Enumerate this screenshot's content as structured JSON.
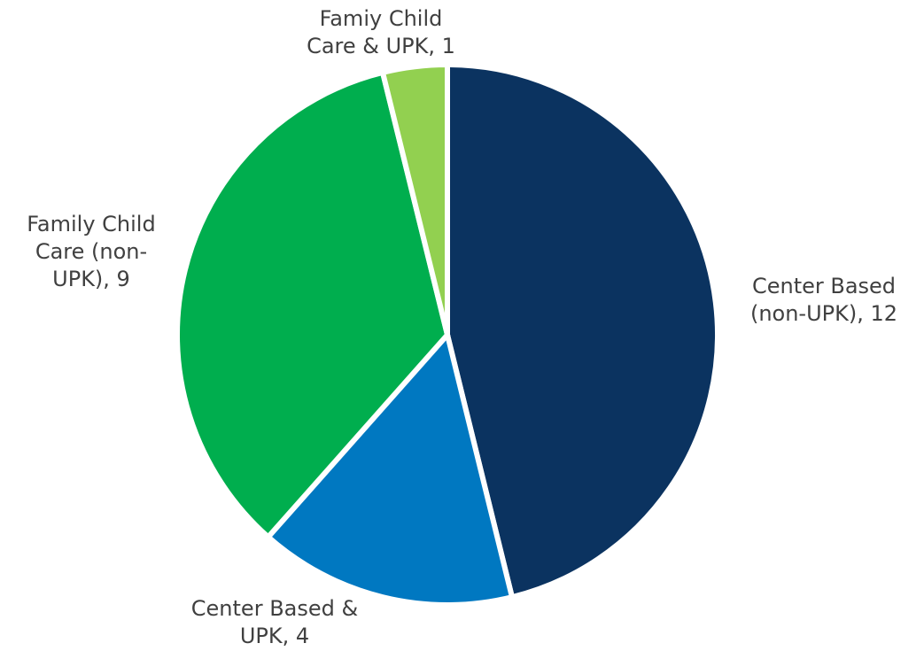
{
  "chart_data": {
    "type": "pie",
    "title": "",
    "legend": "none",
    "start_angle_deg": 0,
    "direction": "clockwise",
    "slices": [
      {
        "name": "Center Based (non-UPK)",
        "value": 12,
        "color": "#0b3360",
        "label_lines": [
          "Center Based",
          "(non-UPK), 12"
        ]
      },
      {
        "name": "Center Based & UPK",
        "value": 4,
        "color": "#0078c1",
        "label_lines": [
          "Center Based &",
          "UPK, 4"
        ]
      },
      {
        "name": "Family Child Care (non-UPK)",
        "value": 9,
        "color": "#00ae4e",
        "label_lines": [
          "Family Child",
          "Care (non-",
          "UPK), 9"
        ]
      },
      {
        "name": "Famiy Child Care & UPK",
        "value": 1,
        "color": "#92d050",
        "label_lines": [
          "Famiy Child",
          "Care & UPK, 1"
        ]
      }
    ]
  }
}
